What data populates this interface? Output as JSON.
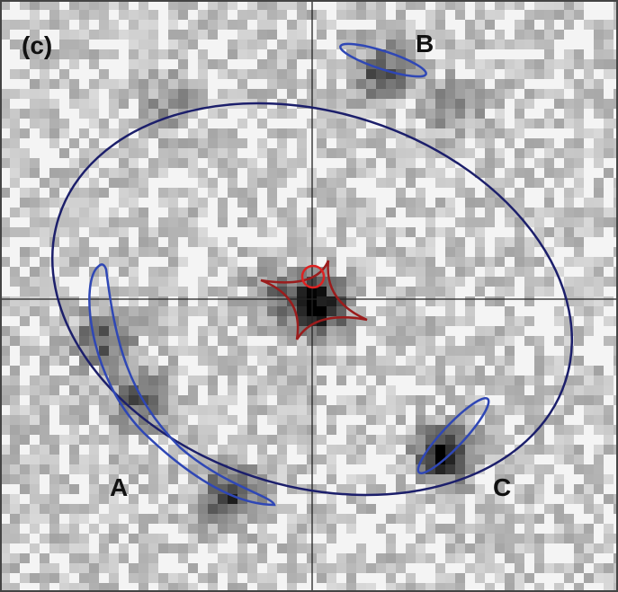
{
  "panel_label": "(c)",
  "images": [
    {
      "label": "A"
    },
    {
      "label": "B"
    },
    {
      "label": "C"
    }
  ]
}
